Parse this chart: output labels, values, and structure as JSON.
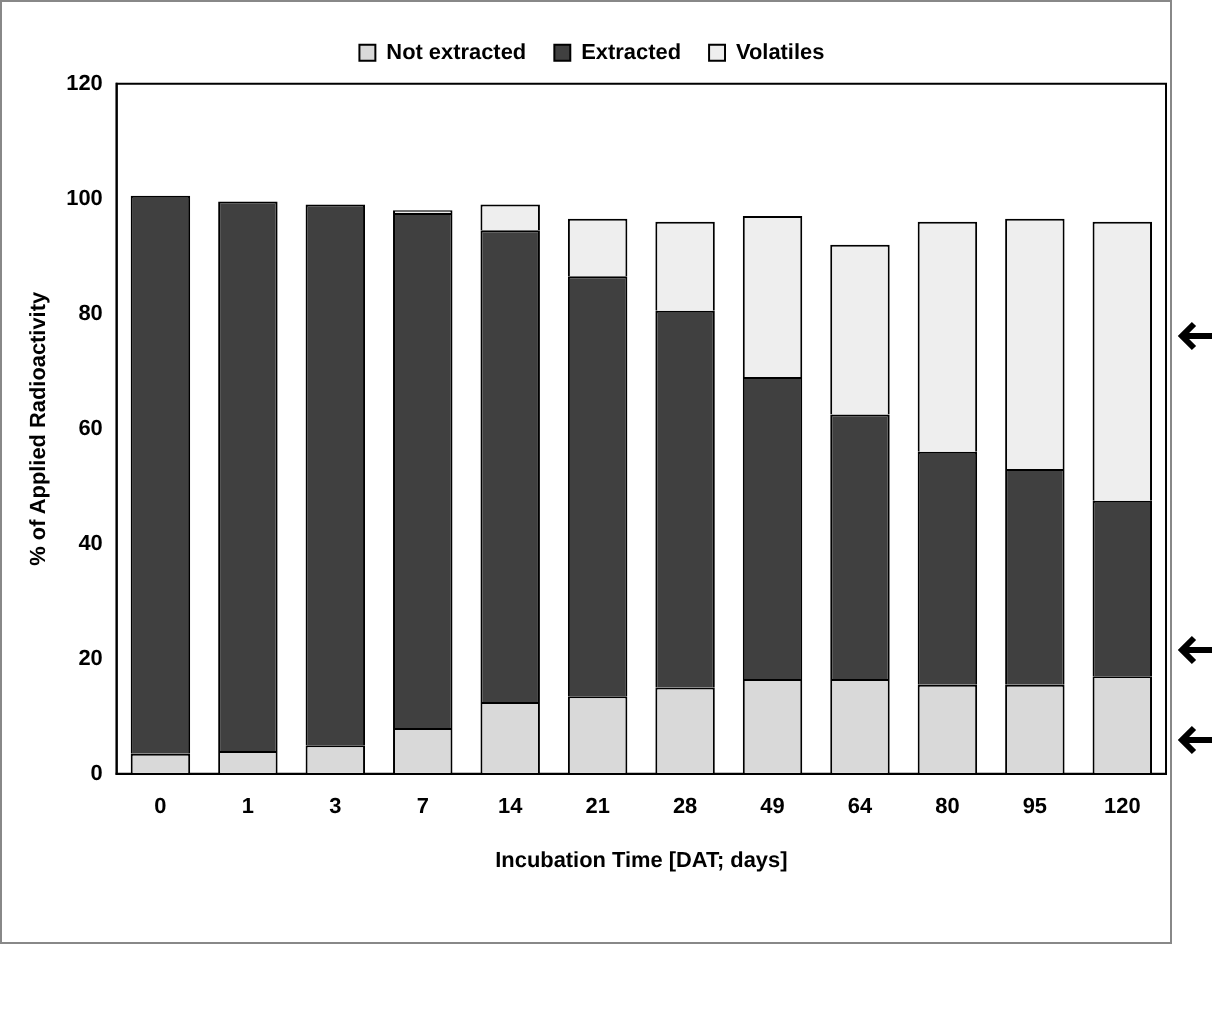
{
  "chart_data": {
    "type": "bar",
    "stacked": true,
    "xlabel": "Incubation Time [DAT; days]",
    "ylabel": "% of Applied Radioactivity",
    "categories": [
      "0",
      "1",
      "3",
      "7",
      "14",
      "21",
      "28",
      "49",
      "64",
      "80",
      "95",
      "120"
    ],
    "series": [
      {
        "name": "Not extracted",
        "color": "#d9d9d9",
        "values": [
          3.5,
          4,
          5,
          8,
          12.5,
          13.5,
          15,
          16.5,
          16.5,
          15.5,
          15.5,
          17
        ]
      },
      {
        "name": "Extracted",
        "color": "#404040",
        "values": [
          97,
          95.5,
          94,
          89.5,
          82,
          73,
          65.5,
          52.5,
          46,
          40.5,
          37.5,
          30.5
        ]
      },
      {
        "name": "Volatiles",
        "color": "#eeeeee",
        "values": [
          0,
          0,
          0,
          0.5,
          4.5,
          10,
          15.5,
          28,
          29.5,
          40,
          43.5,
          48.5
        ]
      }
    ],
    "ylim": [
      0,
      120
    ],
    "yticks": [
      0,
      20,
      40,
      60,
      80,
      100,
      120
    ],
    "grid": false,
    "legend": "top"
  }
}
